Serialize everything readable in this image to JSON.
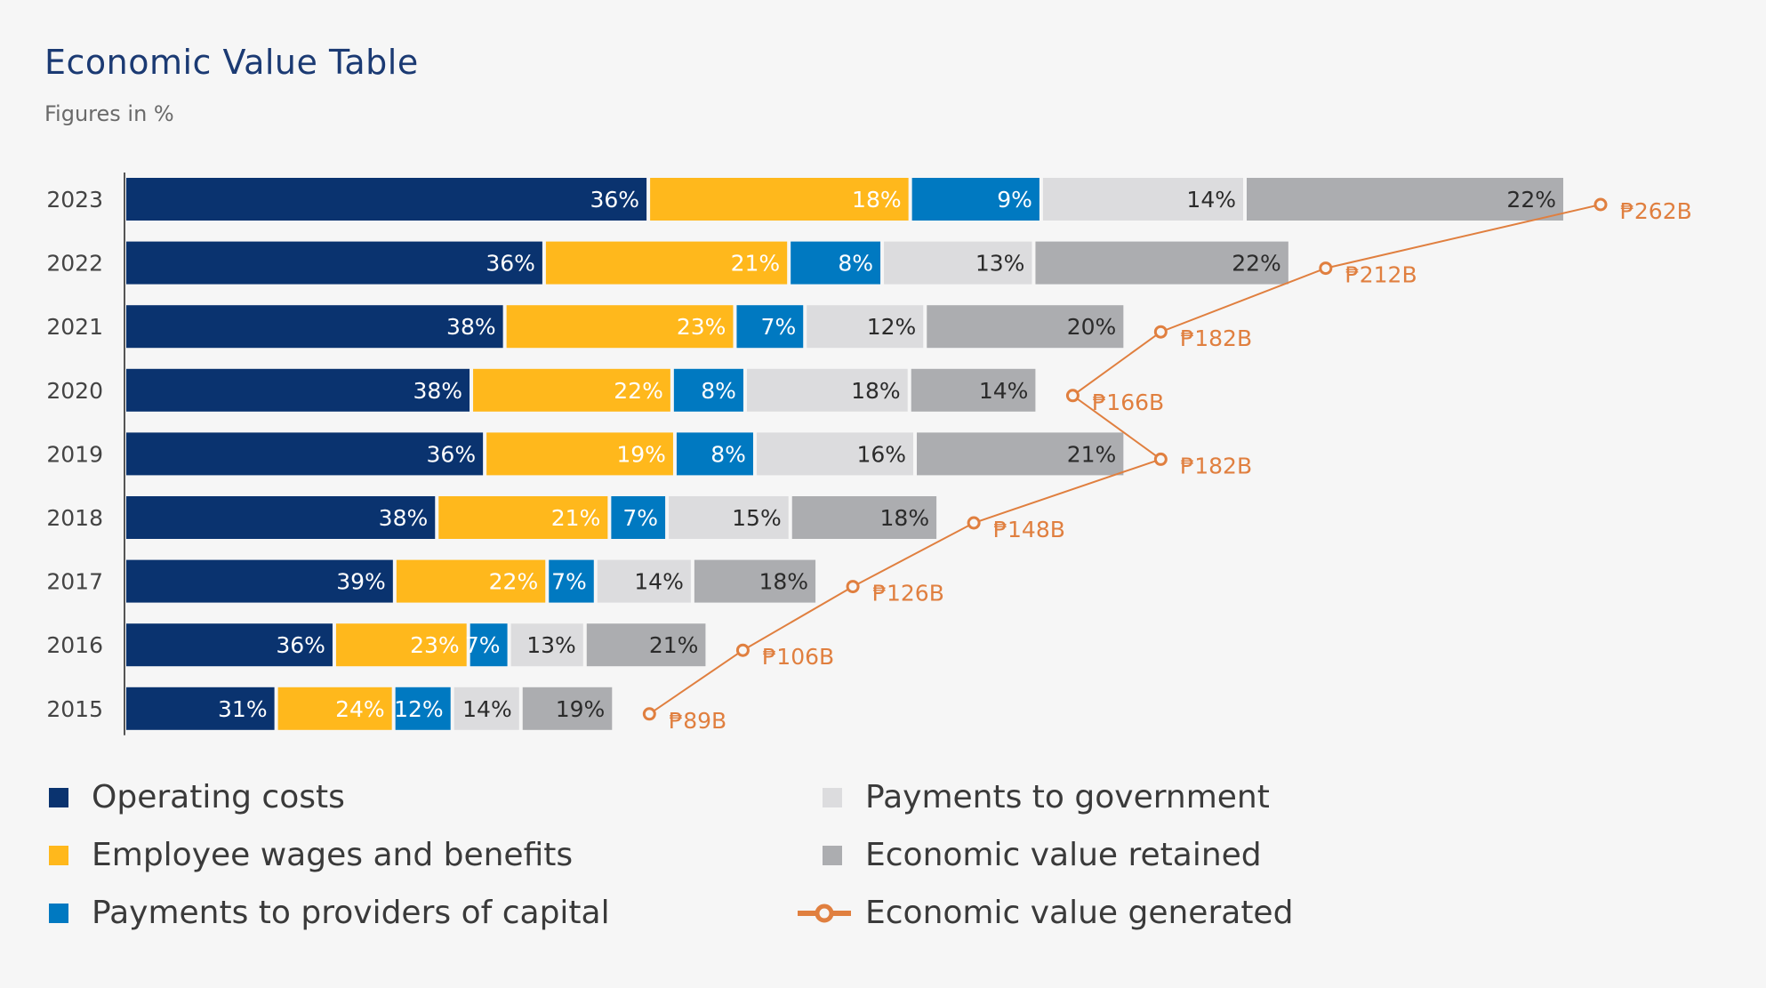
{
  "header": {
    "title": "Economic Value Table",
    "subtitle": "Figures in %"
  },
  "colors": {
    "operating_costs": "#0a336f",
    "employee_wages": "#ffb81c",
    "providers_of_capital": "#0079c1",
    "payments_to_government": "#dcdcde",
    "economic_value_retained": "#acadb0",
    "economic_value_generated": "#e07f3f",
    "label_dark": "#2b2b2b",
    "label_light": "#ffffff"
  },
  "chart_data": {
    "type": "bar",
    "orientation": "horizontal-stacked",
    "title": "Economic Value Table",
    "subtitle": "Figures in %",
    "categories": [
      "2023",
      "2022",
      "2021",
      "2020",
      "2019",
      "2018",
      "2017",
      "2016",
      "2015"
    ],
    "series": [
      {
        "name": "Operating costs",
        "key": "operating_costs",
        "values": [
          36,
          36,
          38,
          38,
          36,
          38,
          39,
          36,
          31
        ]
      },
      {
        "name": "Employee wages and benefits",
        "key": "employee_wages",
        "values": [
          18,
          21,
          23,
          22,
          19,
          21,
          22,
          23,
          24
        ]
      },
      {
        "name": "Payments to providers of capital",
        "key": "providers_of_capital",
        "values": [
          9,
          8,
          7,
          8,
          8,
          7,
          7,
          7,
          12
        ]
      },
      {
        "name": "Payments to government",
        "key": "payments_to_government",
        "values": [
          14,
          13,
          12,
          18,
          16,
          15,
          14,
          13,
          14
        ]
      },
      {
        "name": "Economic value retained",
        "key": "economic_value_retained",
        "values": [
          22,
          22,
          20,
          14,
          21,
          18,
          18,
          21,
          19
        ]
      }
    ],
    "line_series": {
      "name": "Economic value generated",
      "key": "economic_value_generated",
      "values": [
        262,
        212,
        182,
        166,
        182,
        148,
        126,
        106,
        89
      ],
      "labels": [
        "₱262B",
        "₱212B",
        "₱182B",
        "₱166B",
        "₱182B",
        "₱148B",
        "₱126B",
        "₱106B",
        "₱89B"
      ],
      "unit": "PHP billions"
    },
    "value_suffix": "%",
    "bar_length_scaled_by": "economic_value_generated",
    "legend_position": "bottom",
    "grid": false
  },
  "legend": {
    "items": [
      {
        "label": "Operating costs",
        "key": "operating_costs",
        "type": "swatch"
      },
      {
        "label": "Employee wages and benefits",
        "key": "employee_wages",
        "type": "swatch"
      },
      {
        "label": "Payments to providers of capital",
        "key": "providers_of_capital",
        "type": "swatch"
      },
      {
        "label": "Payments to government",
        "key": "payments_to_government",
        "type": "swatch"
      },
      {
        "label": "Economic value retained",
        "key": "economic_value_retained",
        "type": "swatch"
      },
      {
        "label": "Economic value generated",
        "key": "economic_value_generated",
        "type": "line"
      }
    ]
  }
}
